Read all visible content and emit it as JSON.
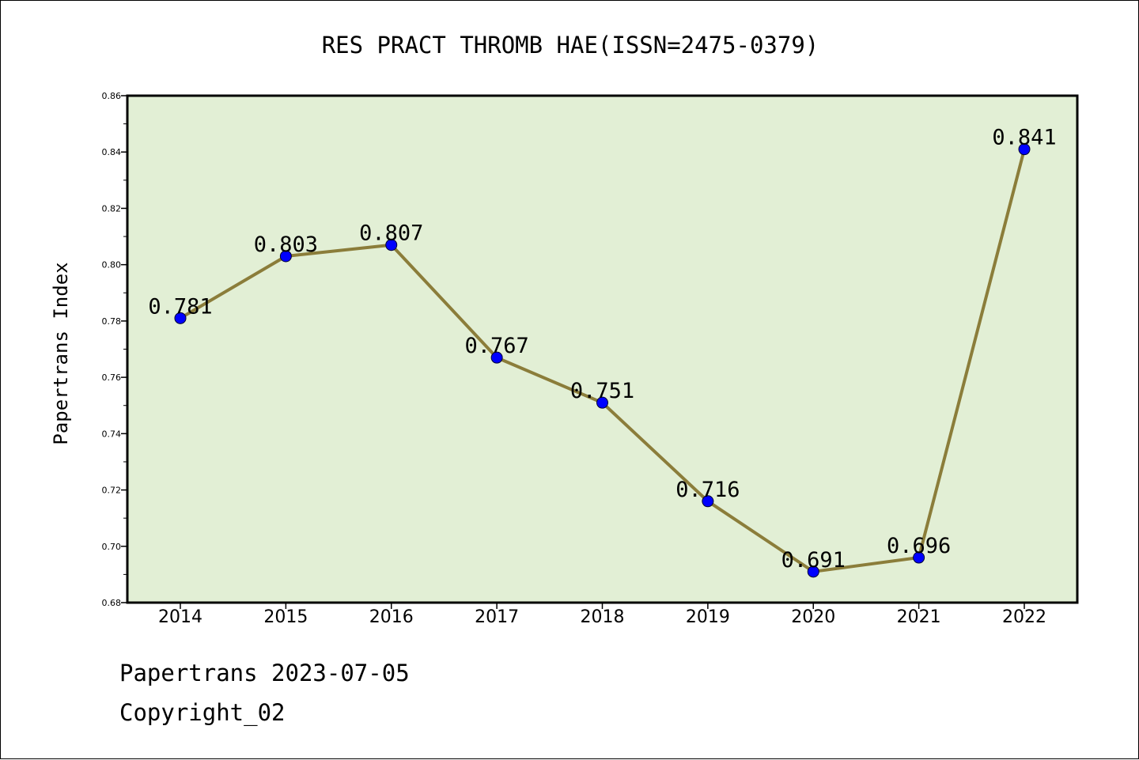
{
  "chart_data": {
    "type": "line",
    "title": "RES PRACT THROMB HAE(ISSN=2475-0379)",
    "xlabel": "",
    "ylabel": "Papertrans Index",
    "categories": [
      "2014",
      "2015",
      "2016",
      "2017",
      "2018",
      "2019",
      "2020",
      "2021",
      "2022"
    ],
    "values": [
      0.781,
      0.803,
      0.807,
      0.767,
      0.751,
      0.716,
      0.691,
      0.696,
      0.841
    ],
    "data_labels": [
      "0.781",
      "0.803",
      "0.807",
      "0.767",
      "0.751",
      "0.716",
      "0.691",
      "0.696",
      "0.841"
    ],
    "ylim": [
      0.68,
      0.86
    ],
    "yticks": [
      "0.68",
      "0.70",
      "0.72",
      "0.74",
      "0.76",
      "0.78",
      "0.80",
      "0.82",
      "0.84",
      "0.86"
    ],
    "grid": false,
    "legend": "none",
    "colors": {
      "plot_background": "#e2efd5",
      "line": "#8b7d3a",
      "marker": "#0000ff"
    }
  },
  "footer": {
    "source": "Papertrans 2023-07-05",
    "copyright": "Copyright_02"
  }
}
